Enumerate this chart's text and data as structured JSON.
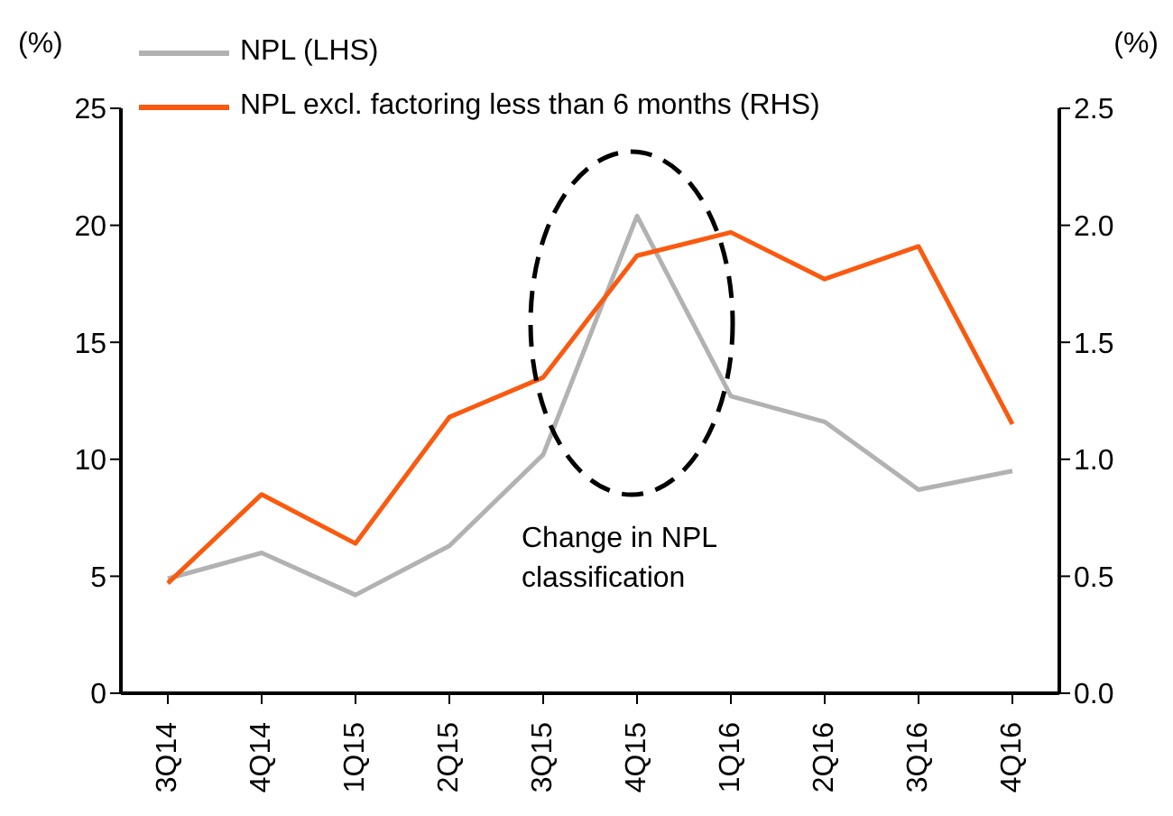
{
  "chart_data": {
    "type": "line",
    "ylabel": "(%)",
    "y2label": "(%)",
    "categories": [
      "3Q14",
      "4Q14",
      "1Q15",
      "2Q15",
      "3Q15",
      "4Q15",
      "1Q16",
      "2Q16",
      "3Q16",
      "4Q16"
    ],
    "series": [
      {
        "name": "NPL (LHS)",
        "color": "#b2b2b2",
        "values": [
          4.9,
          6.0,
          4.2,
          6.3,
          10.2,
          20.4,
          12.7,
          11.6,
          8.7,
          9.5
        ]
      },
      {
        "name": "NPL excl. factoring less than 6 months (RHS)",
        "color": "#fa5a0f",
        "axis": "y2",
        "values": [
          0.47,
          0.85,
          0.64,
          1.18,
          1.35,
          1.87,
          1.97,
          1.77,
          1.91,
          1.15
        ]
      }
    ],
    "ylim": [
      0,
      25
    ],
    "yticks": [
      0,
      5,
      10,
      15,
      20,
      25
    ],
    "y2lim": [
      0,
      2.5
    ],
    "y2ticks": [
      {
        "value": 0,
        "label": "0.0"
      },
      {
        "value": 0.5,
        "label": "0.5"
      },
      {
        "value": 1,
        "label": "1.0"
      },
      {
        "value": 1.5,
        "label": "1.5"
      },
      {
        "value": 2,
        "label": "2.0"
      },
      {
        "value": 2.5,
        "label": "2.5"
      }
    ],
    "legend": "top left",
    "grid": false,
    "marker": "none",
    "line_style": "solid",
    "annotations": [
      "Change in NPL classification"
    ]
  }
}
